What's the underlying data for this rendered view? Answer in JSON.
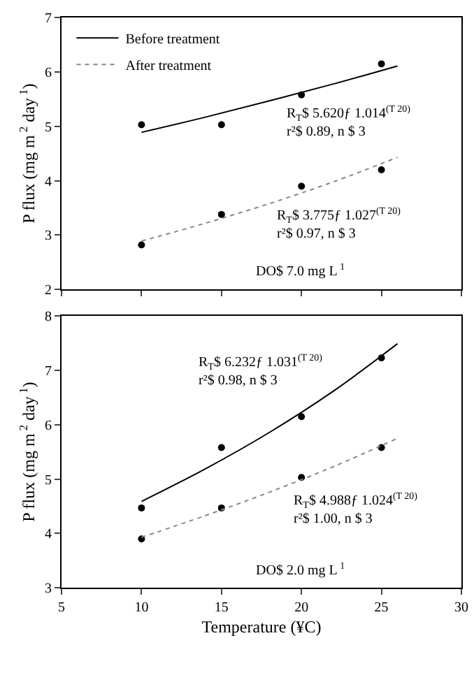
{
  "chart_data": [
    {
      "type": "scatter",
      "ylabel": "P flux (mg m$^{ 2}$ day$^{ 1}$)",
      "xlim": [
        5,
        30
      ],
      "xticks": [
        5,
        10,
        15,
        20,
        25,
        30
      ],
      "ylim": [
        2,
        7
      ],
      "yticks": [
        2,
        3,
        4,
        5,
        6,
        7
      ],
      "tick_labels": "y",
      "legend": "top left",
      "marker": "circle",
      "annotations": [
        "R$_{T}$$ 5.620ƒ 1.014$^{(T 20)}$\nr²$ 0.89, n $ 3",
        "R$_{T}$$ 3.775ƒ 1.027$^{(T 20)}$\nr²$ 0.97, n $ 3",
        "DO$ 7.0 mg L$^{ 1}$"
      ],
      "series": [
        {
          "color": "#000000",
          "x": [
            10,
            15,
            20,
            25
          ],
          "values": [
            5.03,
            5.03,
            5.58,
            6.15
          ]
        },
        {
          "color": "#000000",
          "x": [
            10,
            15,
            20,
            25
          ],
          "values": [
            2.82,
            3.38,
            3.9,
            4.2
          ]
        },
        {
          "type": "line",
          "name": "Before treatment",
          "color": "#000000",
          "line_style": "solid",
          "marker": "none",
          "x": [
            10,
            14,
            18,
            22,
            26
          ],
          "values": [
            4.89,
            5.17,
            5.47,
            5.78,
            6.11
          ]
        },
        {
          "type": "line",
          "name": "After treatment",
          "color": "#888888",
          "line_style": "dotted",
          "marker": "none",
          "x": [
            10,
            14,
            18,
            22,
            26
          ],
          "values": [
            2.89,
            3.22,
            3.58,
            3.98,
            4.43
          ]
        }
      ]
    },
    {
      "type": "scatter",
      "xlabel": "Temperature (¥C)",
      "ylabel": "P flux (mg m$^{ 2}$ day$^{ 1}$)",
      "xlim": [
        5,
        30
      ],
      "xticks": [
        5,
        10,
        15,
        20,
        25,
        30
      ],
      "ylim": [
        3,
        8
      ],
      "yticks": [
        3,
        4,
        5,
        6,
        7,
        8
      ],
      "marker": "circle",
      "annotations": [
        "R$_{T}$$ 6.232ƒ 1.031$^{(T 20)}$\nr²$ 0.98, n $ 3",
        "R$_{T}$$ 4.988ƒ 1.024$^{(T 20)}$\nr²$ 1.00, n $ 3",
        "DO$ 2.0 mg L$^{ 1}$"
      ],
      "series": [
        {
          "color": "#000000",
          "x": [
            10,
            15,
            20,
            25
          ],
          "values": [
            4.47,
            5.58,
            6.15,
            7.23
          ]
        },
        {
          "color": "#000000",
          "x": [
            10,
            15,
            20,
            25
          ],
          "values": [
            3.9,
            4.47,
            5.03,
            5.58
          ]
        },
        {
          "type": "line",
          "color": "#000000",
          "line_style": "solid",
          "marker": "none",
          "x": [
            10,
            14,
            18,
            22,
            26
          ],
          "values": [
            4.59,
            5.19,
            5.86,
            6.62,
            7.49
          ]
        },
        {
          "type": "line",
          "color": "#888888",
          "line_style": "dotted",
          "marker": "none",
          "x": [
            10,
            14,
            18,
            22,
            26
          ],
          "values": [
            3.93,
            4.33,
            4.76,
            5.23,
            5.75
          ]
        }
      ]
    }
  ]
}
